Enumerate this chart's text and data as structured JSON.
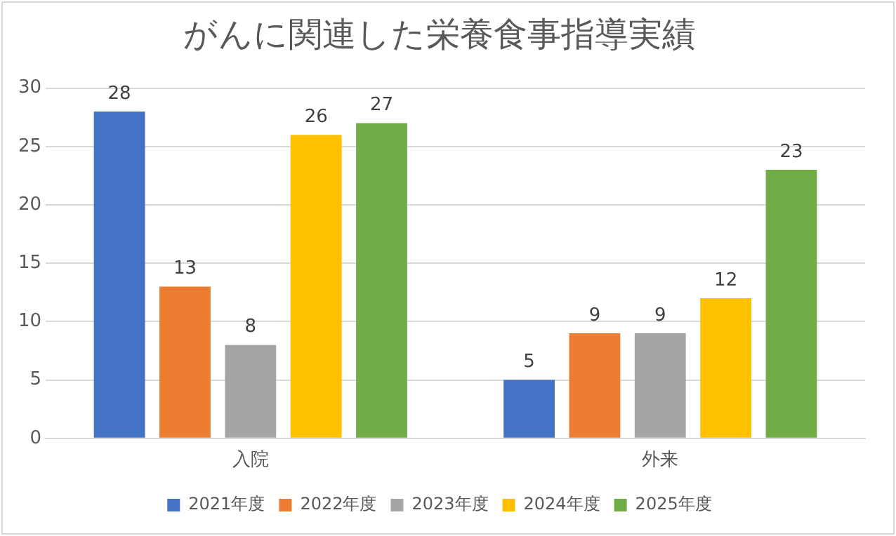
{
  "chart_data": {
    "type": "bar",
    "title": "がんに関連した栄養食事指導実績",
    "categories": [
      "入院",
      "外来"
    ],
    "series": [
      {
        "name": "2021年度",
        "color": "#4472c4",
        "values": [
          28,
          5
        ]
      },
      {
        "name": "2022年度",
        "color": "#ed7d31",
        "values": [
          13,
          9
        ]
      },
      {
        "name": "2023年度",
        "color": "#a5a5a5",
        "values": [
          8,
          9
        ]
      },
      {
        "name": "2024年度",
        "color": "#ffc000",
        "values": [
          26,
          12
        ]
      },
      {
        "name": "2025年度",
        "color": "#70ad47",
        "values": [
          27,
          23
        ]
      }
    ],
    "ylim": [
      0,
      30
    ],
    "yticks": [
      0,
      5,
      10,
      15,
      20,
      25,
      30
    ],
    "grid": "y",
    "legend": "bottom",
    "data_labels": true
  }
}
